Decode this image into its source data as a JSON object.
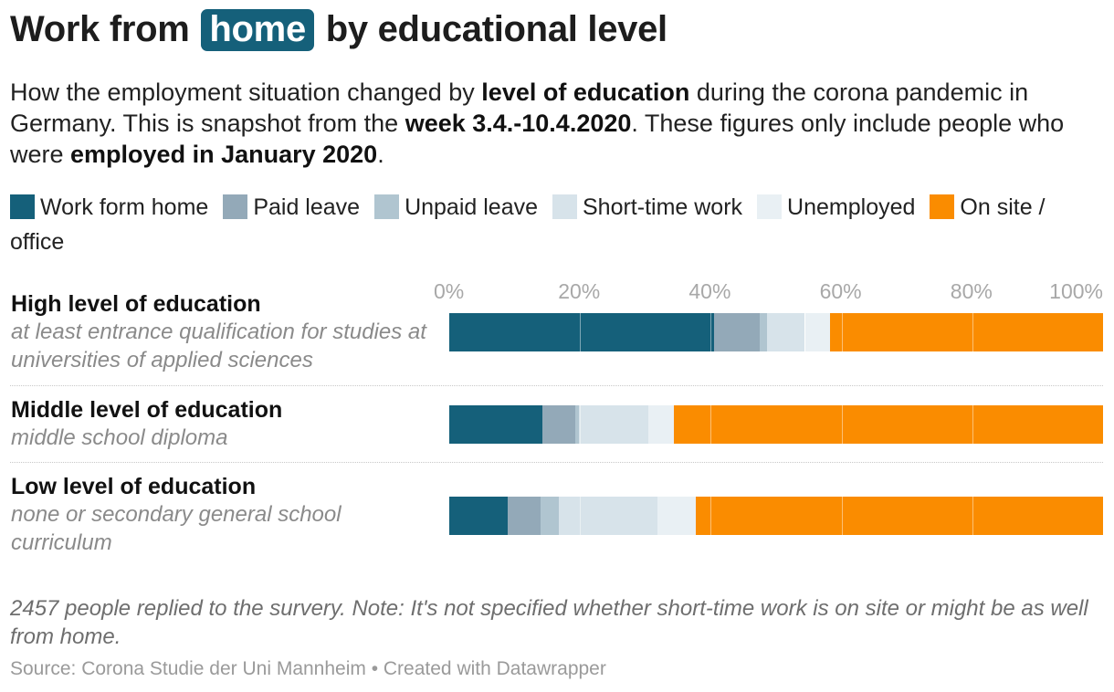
{
  "title": {
    "before": "Work from",
    "highlight": "home",
    "after": "by educational level"
  },
  "subtitle": {
    "p1": "How the employment situation changed by ",
    "b1": "level of education",
    "p2": " during the corona pandemic in Germany. This is snapshot from the ",
    "b2": "week 3.4.-10.4.2020",
    "p3": ". These figures only include people who were ",
    "b3": "employed in January 2020",
    "p4": "."
  },
  "legend": [
    {
      "label": "Work form home",
      "color": "#15607a"
    },
    {
      "label": "Paid leave",
      "color": "#93a9b8"
    },
    {
      "label": "Unpaid leave",
      "color": "#b0c5d0"
    },
    {
      "label": "Short-time work",
      "color": "#d7e3ea"
    },
    {
      "label": "Unemployed",
      "color": "#e9f0f4"
    },
    {
      "label": "On site / office",
      "color": "#fa8c00"
    }
  ],
  "chart_data": {
    "type": "bar",
    "orientation": "horizontal",
    "stacked": true,
    "xlim": [
      0,
      100
    ],
    "x_ticks": [
      "0%",
      "20%",
      "40%",
      "60%",
      "80%",
      "100%"
    ],
    "categories": [
      {
        "label": "High level of education",
        "sublabel": "at least entrance qualification for studies at universities of applied sciences"
      },
      {
        "label": "Middle level of education",
        "sublabel": "middle school diploma"
      },
      {
        "label": "Low level of education",
        "sublabel": "none or secondary general school curriculum"
      }
    ],
    "series": [
      {
        "name": "Work form home",
        "color": "#15607a",
        "values": [
          40.5,
          14.3,
          8.9
        ]
      },
      {
        "name": "Paid leave",
        "color": "#93a9b8",
        "values": [
          7.0,
          5.0,
          5.0
        ]
      },
      {
        "name": "Unpaid leave",
        "color": "#b0c5d0",
        "values": [
          1.1,
          0.5,
          2.8
        ]
      },
      {
        "name": "Short-time work",
        "color": "#d7e3ea",
        "values": [
          5.8,
          10.7,
          15.1
        ]
      },
      {
        "name": "Unemployed",
        "color": "#e9f0f4",
        "values": [
          3.9,
          3.9,
          5.9
        ]
      },
      {
        "name": "On site / office",
        "color": "#fa8c00",
        "values": [
          41.7,
          65.6,
          62.3
        ]
      }
    ]
  },
  "note": "2457 people replied to the survery. Note: It's not specified whether short-time work is on site or might be as well from home.",
  "source": "Source: Corona Studie der Uni Mannheim • Created with Datawrapper"
}
